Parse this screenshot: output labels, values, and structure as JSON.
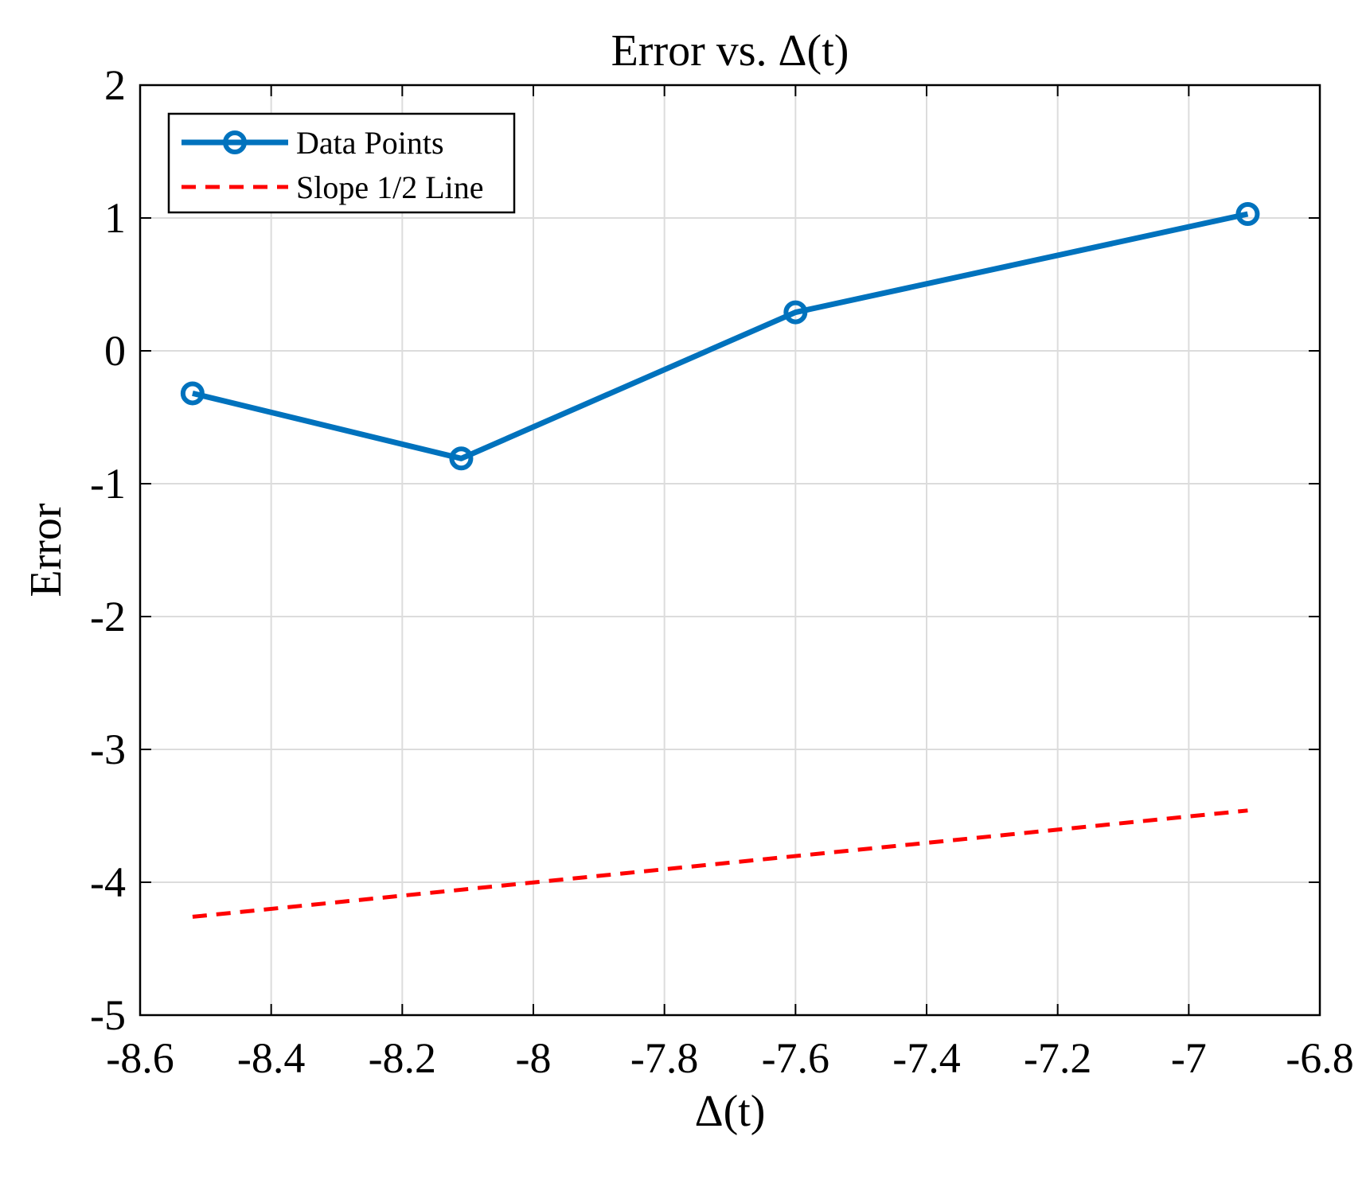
{
  "chart_data": {
    "type": "line",
    "title": "Error vs. Δ(t)",
    "xlabel": "Δ(t)",
    "ylabel": "Error",
    "xlim": [
      -8.6,
      -6.8
    ],
    "ylim": [
      -5,
      2
    ],
    "xticks": [
      -8.6,
      -8.4,
      -8.2,
      -8,
      -7.8,
      -7.6,
      -7.4,
      -7.2,
      -7,
      -6.8
    ],
    "xtick_labels": [
      "-8.6",
      "-8.4",
      "-8.2",
      "-8",
      "-7.8",
      "-7.6",
      "-7.4",
      "-7.2",
      "-7",
      "-6.8"
    ],
    "yticks": [
      -5,
      -4,
      -3,
      -2,
      -1,
      0,
      1,
      2
    ],
    "ytick_labels": [
      "-5",
      "-4",
      "-3",
      "-2",
      "-1",
      "0",
      "1",
      "2"
    ],
    "grid": true,
    "legend_position": "top-left",
    "series": [
      {
        "name": "Data Points",
        "color": "#0072BD",
        "style": "solid",
        "marker": "circle",
        "x": [
          -8.52,
          -8.11,
          -7.6,
          -6.91
        ],
        "y": [
          -0.32,
          -0.81,
          0.29,
          1.03
        ]
      },
      {
        "name": "Slope 1/2 Line",
        "color": "#FF0000",
        "style": "dashed",
        "marker": "none",
        "x": [
          -8.52,
          -6.91
        ],
        "y": [
          -4.26,
          -3.46
        ]
      }
    ]
  }
}
